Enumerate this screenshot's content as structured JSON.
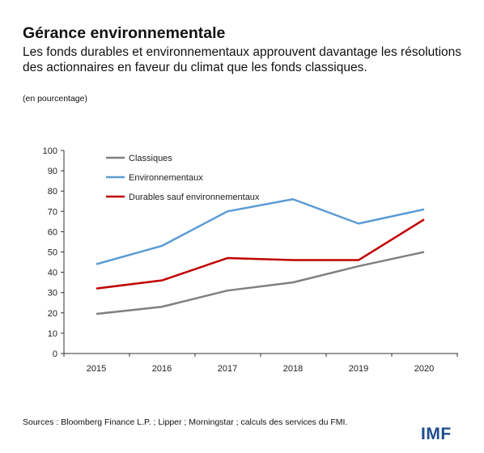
{
  "title": "Gérance environnementale",
  "subtitle": "Les fonds durables et environnementaux approuvent davantage les résolutions des actionnaires en faveur du climat que les fonds classiques.",
  "unit": "(en pourcentage)",
  "source": "Sources : Bloomberg Finance L.P. ; Lipper ; Morningstar ; calculs des services du FMI.",
  "logo": "IMF",
  "chart_data": {
    "type": "line",
    "categories": [
      "2015",
      "2016",
      "2017",
      "2018",
      "2019",
      "2020"
    ],
    "ylim": [
      0,
      100
    ],
    "yticks": [
      0,
      10,
      20,
      30,
      40,
      50,
      60,
      70,
      80,
      90,
      100
    ],
    "grid": false,
    "legend_position": "top-left",
    "series": [
      {
        "name": "Classiques",
        "color": "#808080",
        "values": [
          19.5,
          23,
          31,
          35,
          43,
          50
        ]
      },
      {
        "name": "Environnementaux",
        "color": "#5b9bd5",
        "values": [
          44,
          53,
          70,
          76,
          64,
          71
        ]
      },
      {
        "name": "Durables sauf environnementaux",
        "color": "#c00000",
        "values": [
          32,
          36,
          47,
          46,
          46,
          66
        ]
      }
    ]
  }
}
